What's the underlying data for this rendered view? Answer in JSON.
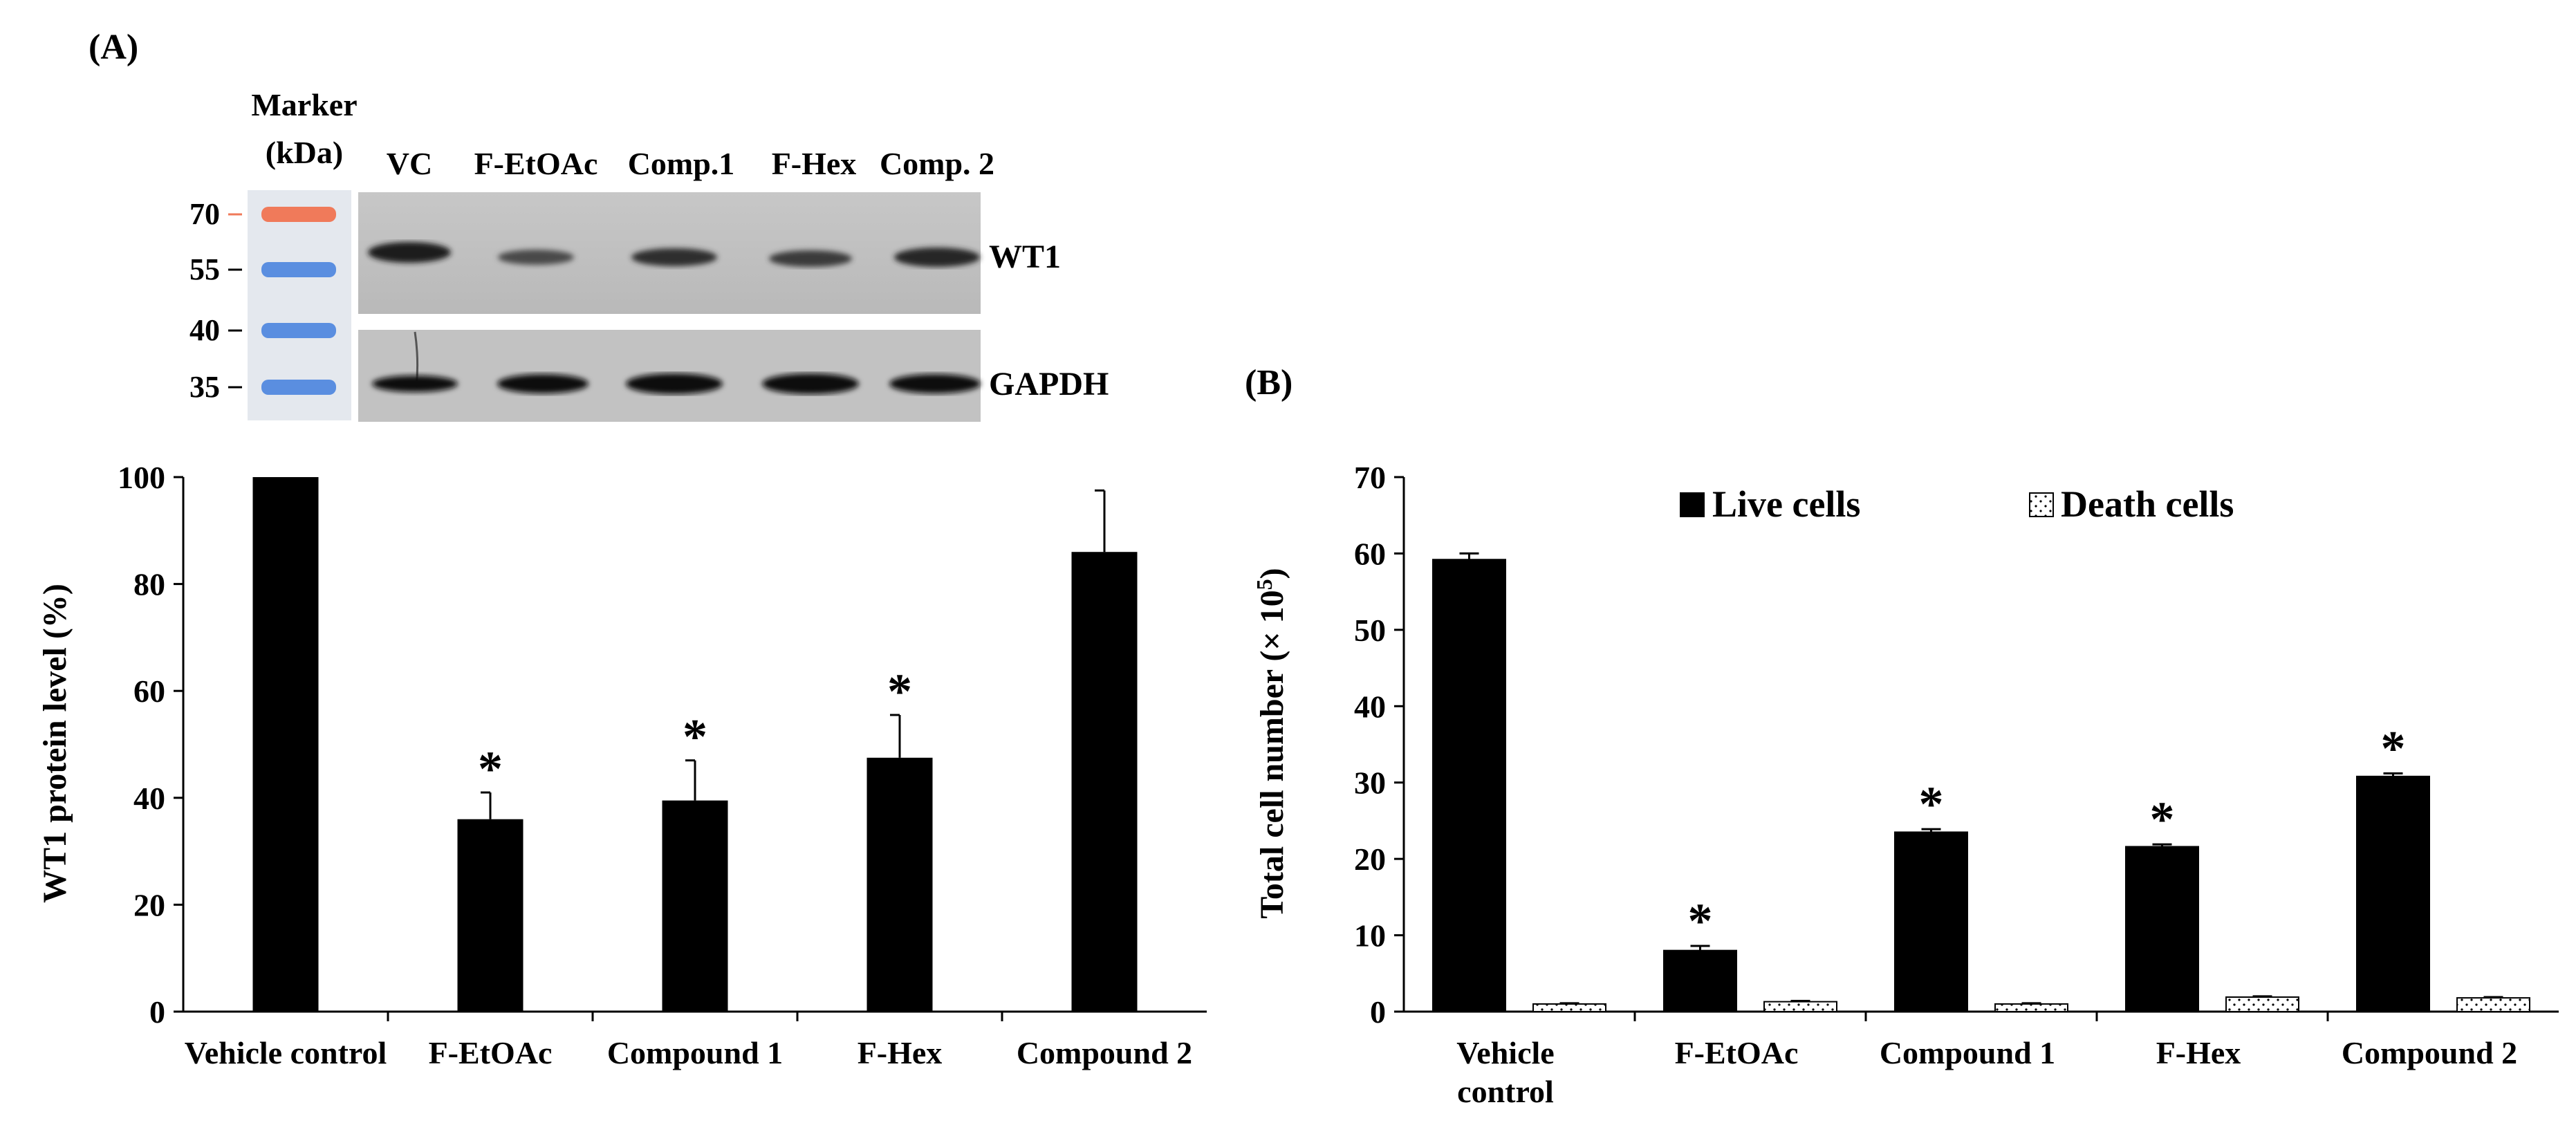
{
  "panel_a": {
    "label": "(A)",
    "blot": {
      "marker_title": [
        "Marker",
        "(kDa)"
      ],
      "lanes": [
        "VC",
        "F-EtOAc",
        "Comp.1",
        "F-Hex",
        "Comp. 2"
      ],
      "marker_bands": [
        "70",
        "55",
        "40",
        "35"
      ],
      "rows": [
        "WT1",
        "GAPDH"
      ],
      "colors": {
        "marker_70": "#f07a5a",
        "marker_other": "#5a8ee0"
      }
    },
    "chart": {
      "type": "bar",
      "categories": [
        "Vehicle control",
        "F-EtOAc",
        "Compound 1",
        "F-Hex",
        "Compound 2"
      ],
      "values": [
        100,
        36,
        39.5,
        47.5,
        86
      ],
      "errors": [
        0,
        5,
        7.5,
        8,
        11.5
      ],
      "significant": [
        false,
        true,
        true,
        true,
        false
      ],
      "significance_marker": "*",
      "ylabel": "WT1  protein level (%)",
      "xlabel": "",
      "ylim": [
        0,
        100
      ],
      "yticks": [
        "0",
        "20",
        "40",
        "60",
        "80",
        "100"
      ],
      "bar_color": "#000000"
    }
  },
  "panel_b": {
    "label": "(B)",
    "chart": {
      "type": "bar",
      "categories": [
        [
          "Vehicle",
          "control"
        ],
        [
          "F-EtOAc"
        ],
        [
          "Compound 1"
        ],
        [
          "F-Hex"
        ],
        [
          "Compound 2"
        ]
      ],
      "series": [
        {
          "name": "Live cells",
          "values": [
            59.2,
            8,
            23.5,
            21.6,
            30.8
          ],
          "errors": [
            0.8,
            0.6,
            0.4,
            0.3,
            0.4
          ],
          "fill": "#000000"
        },
        {
          "name": "Death cells",
          "values": [
            1.0,
            1.3,
            1.0,
            1.9,
            1.8
          ],
          "errors": [
            0.1,
            0.1,
            0.1,
            0.1,
            0.1
          ],
          "fill": "dotted"
        }
      ],
      "significant": [
        false,
        true,
        true,
        true,
        true
      ],
      "significance_marker": "*",
      "ylabel_main": "Total cell number (× 10",
      "ylabel_sup": "5",
      "ylabel_end": ")",
      "xlabel": "",
      "ylim": [
        0,
        70
      ],
      "yticks": [
        "0",
        "10",
        "20",
        "30",
        "40",
        "50",
        "60",
        "70"
      ],
      "legend_position": "top"
    }
  }
}
